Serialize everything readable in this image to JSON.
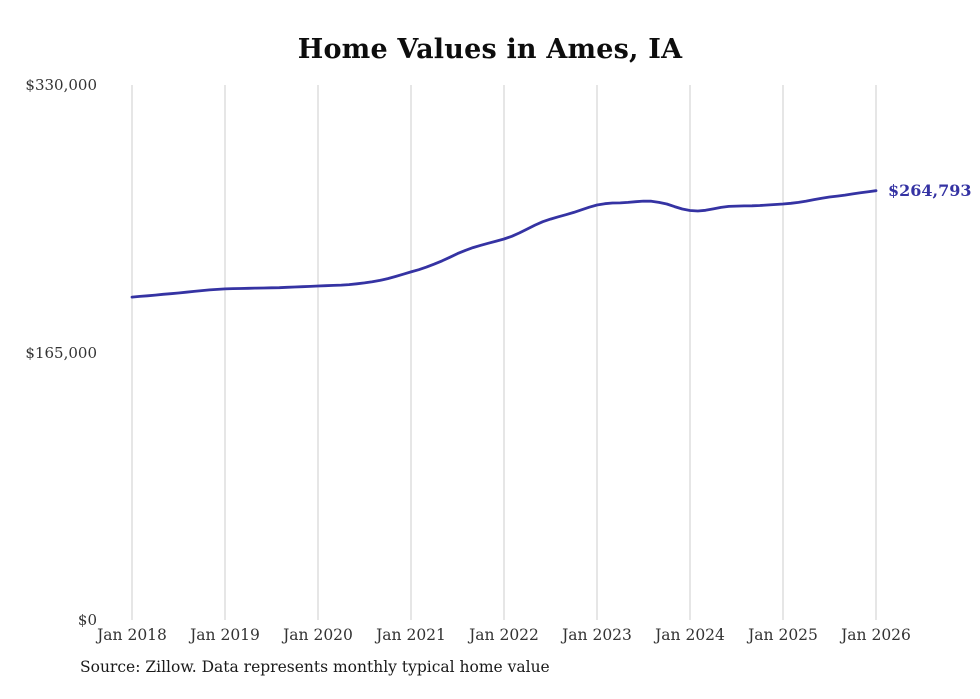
{
  "source_note": "Source: Zillow. Data represents monthly typical home value",
  "chart_data": {
    "type": "line",
    "title": "Home Values in Ames, IA",
    "series_name": "Typical home value",
    "x_unit": "month",
    "x_tick_labels": [
      "Jan 2018",
      "Jan 2019",
      "Jan 2020",
      "Jan 2021",
      "Jan 2022",
      "Jan 2023",
      "Jan 2024",
      "Jan 2025",
      "Jan 2026"
    ],
    "y_tick_labels": [
      "$330,000",
      "$165,000",
      "$0"
    ],
    "y_ticks": [
      330000,
      165000,
      0
    ],
    "ylim": [
      0,
      330000
    ],
    "grid": "vertical-only",
    "legend": "none",
    "line_color": "#3533a3",
    "grid_color": "#cccccc",
    "end_label": "$264,793",
    "end_value": 264793,
    "values": [
      199200,
      199600,
      200000,
      200400,
      200900,
      201300,
      201700,
      202200,
      202700,
      203200,
      203600,
      203900,
      204200,
      204400,
      204500,
      204600,
      204700,
      204800,
      204900,
      205000,
      205200,
      205400,
      205600,
      205800,
      206000,
      206200,
      206400,
      206600,
      206900,
      207400,
      207900,
      208600,
      209500,
      210600,
      211900,
      213300,
      214700,
      216100,
      217700,
      219500,
      221500,
      223700,
      226000,
      228000,
      229700,
      231100,
      232400,
      233700,
      235000,
      236700,
      238800,
      241200,
      243600,
      245700,
      247300,
      248700,
      250000,
      251400,
      253000,
      254600,
      256000,
      256800,
      257200,
      257300,
      257600,
      258000,
      258400,
      258300,
      257600,
      256600,
      255000,
      253500,
      252600,
      252300,
      252700,
      253600,
      254500,
      255100,
      255300,
      255400,
      255500,
      255700,
      256000,
      256300,
      256600,
      257000,
      257600,
      258400,
      259300,
      260200,
      260900,
      261500,
      262100,
      262800,
      263500,
      264200,
      264793
    ]
  }
}
